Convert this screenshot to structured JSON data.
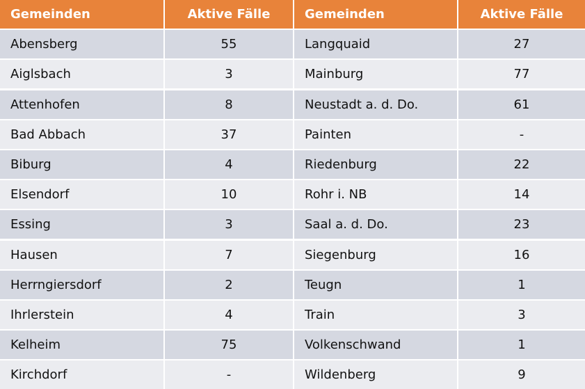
{
  "headers": [
    "Gemeinden",
    "Aktive Fälle",
    "Gemeinden",
    "Aktive Fälle"
  ],
  "colors": {
    "header": "#e8833a",
    "row_odd": "#d5d8e1",
    "row_even": "#ebecf0"
  },
  "rows": [
    {
      "left_name": "Abensberg",
      "left_value": "55",
      "right_name": "Langquaid",
      "right_value": "27"
    },
    {
      "left_name": "Aiglsbach",
      "left_value": "3",
      "right_name": "Mainburg",
      "right_value": "77"
    },
    {
      "left_name": "Attenhofen",
      "left_value": "8",
      "right_name": "Neustadt a. d. Do.",
      "right_value": "61"
    },
    {
      "left_name": "Bad Abbach",
      "left_value": "37",
      "right_name": "Painten",
      "right_value": "-"
    },
    {
      "left_name": "Biburg",
      "left_value": "4",
      "right_name": "Riedenburg",
      "right_value": "22"
    },
    {
      "left_name": "Elsendorf",
      "left_value": "10",
      "right_name": "Rohr i. NB",
      "right_value": "14"
    },
    {
      "left_name": "Essing",
      "left_value": "3",
      "right_name": "Saal a. d. Do.",
      "right_value": "23"
    },
    {
      "left_name": "Hausen",
      "left_value": "7",
      "right_name": "Siegenburg",
      "right_value": "16"
    },
    {
      "left_name": "Herrngiersdorf",
      "left_value": "2",
      "right_name": "Teugn",
      "right_value": "1"
    },
    {
      "left_name": "Ihrlerstein",
      "left_value": "4",
      "right_name": "Train",
      "right_value": "3"
    },
    {
      "left_name": "Kelheim",
      "left_value": "75",
      "right_name": "Volkenschwand",
      "right_value": "1"
    },
    {
      "left_name": "Kirchdorf",
      "left_value": "-",
      "right_name": "Wildenberg",
      "right_value": "9"
    }
  ]
}
